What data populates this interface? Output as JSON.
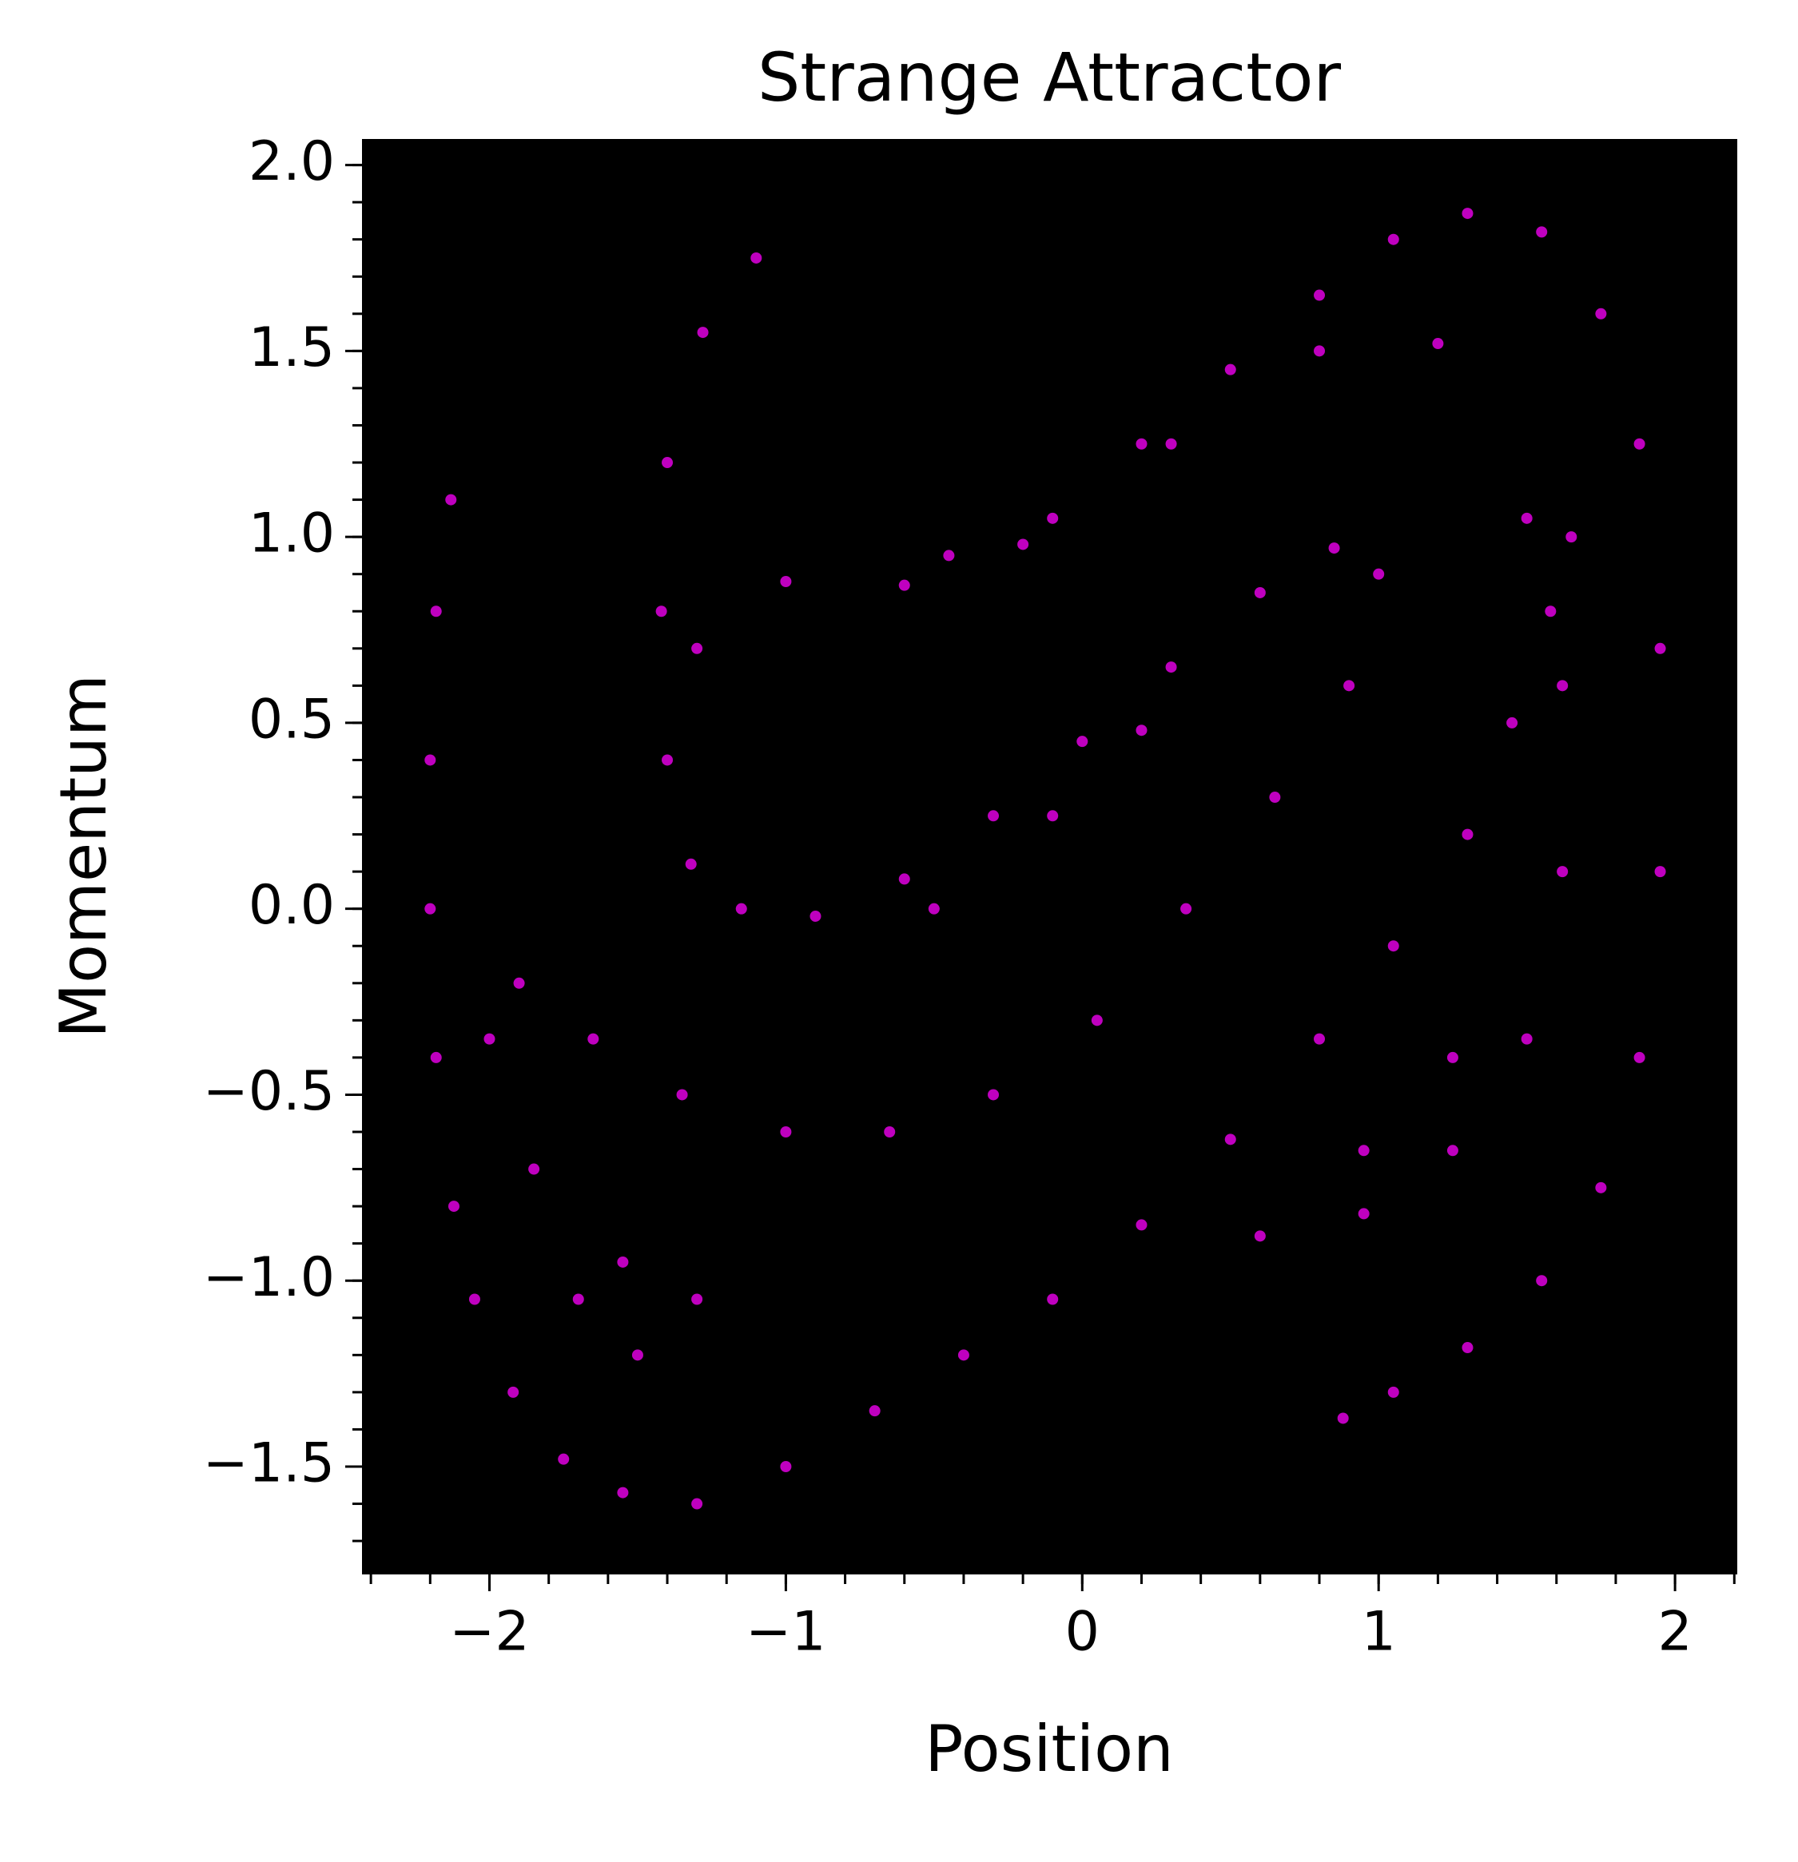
{
  "chart_data": {
    "type": "scatter",
    "title": "Strange Attractor",
    "xlabel": "Position",
    "ylabel": "Momentum",
    "color": "#bf00bf",
    "facecolor": "#000000",
    "x": [
      -2.13,
      -2.18,
      -2.2,
      -2.2,
      -2.18,
      -2.12,
      -2.05,
      -1.92,
      -1.75,
      -1.55,
      -1.3,
      -1.0,
      -0.7,
      -0.4,
      -0.1,
      0.2,
      0.5,
      0.8,
      1.05,
      1.3,
      1.45,
      1.58,
      1.65,
      -0.45,
      -0.1,
      0.2,
      0.5,
      0.8,
      1.05,
      1.3,
      1.55,
      1.75,
      1.88,
      1.95,
      1.95,
      1.88,
      1.75,
      1.55,
      1.3,
      1.05,
      0.88,
      -1.1,
      -1.28,
      -1.4,
      -1.42,
      -1.4,
      -1.32,
      -1.15,
      -0.9,
      -0.6,
      -0.3,
      0.0,
      0.3,
      0.6,
      0.85,
      1.0,
      0.9,
      0.65,
      0.35,
      0.05,
      -0.3,
      -0.65,
      -1.0,
      -1.35,
      -1.65,
      -1.9,
      -2.0,
      -1.85,
      -1.55,
      -1.3,
      -1.5,
      -1.7,
      -1.3,
      -1.0,
      -0.6,
      -0.2,
      0.3,
      0.8,
      1.2,
      1.5,
      1.62,
      1.62,
      1.5,
      1.25,
      0.95,
      0.6,
      0.95,
      1.25,
      0.2,
      -0.1,
      -0.5
    ],
    "y": [
      1.1,
      0.8,
      0.4,
      0.0,
      -0.4,
      -0.8,
      -1.05,
      -1.3,
      -1.48,
      -1.57,
      -1.6,
      -1.5,
      -1.35,
      -1.2,
      -1.05,
      -0.85,
      -0.62,
      -0.35,
      -0.1,
      0.2,
      0.5,
      0.8,
      1.0,
      0.95,
      1.05,
      1.25,
      1.45,
      1.65,
      1.8,
      1.87,
      1.82,
      1.6,
      1.25,
      0.7,
      0.1,
      -0.4,
      -0.75,
      -1.0,
      -1.18,
      -1.3,
      -1.37,
      1.75,
      1.55,
      1.2,
      0.8,
      0.4,
      0.12,
      0.0,
      -0.02,
      0.08,
      0.25,
      0.45,
      0.65,
      0.85,
      0.97,
      0.9,
      0.6,
      0.3,
      0.0,
      -0.3,
      -0.5,
      -0.6,
      -0.6,
      -0.5,
      -0.35,
      -0.2,
      -0.35,
      -0.7,
      -0.95,
      -1.05,
      -1.2,
      -1.05,
      0.7,
      0.88,
      0.87,
      0.98,
      1.25,
      1.5,
      1.52,
      1.05,
      0.6,
      0.1,
      -0.35,
      -0.65,
      -0.82,
      -0.88,
      -0.65,
      -0.4,
      0.48,
      0.25,
      0.0
    ],
    "xlim": [
      -2.43,
      2.21
    ],
    "ylim": [
      -1.79,
      2.07
    ],
    "xticks": [
      {
        "value": -2,
        "label": "−2"
      },
      {
        "value": -1,
        "label": "−1"
      },
      0,
      1,
      2
    ],
    "yticks": [
      {
        "value": -1.5,
        "label": "−1.5"
      },
      {
        "value": -1.0,
        "label": "−1.0"
      },
      {
        "value": -0.5,
        "label": "−0.5"
      },
      {
        "value": 0,
        "label": "0.0"
      },
      {
        "value": 0.5,
        "label": "0.5"
      },
      {
        "value": 1.0,
        "label": "1.0"
      },
      {
        "value": 1.5,
        "label": "1.5"
      },
      {
        "value": 2.0,
        "label": "2.0"
      }
    ],
    "xminorticks": [
      -2.4,
      -2.2,
      -2.0,
      -1.8,
      -1.6,
      -1.4,
      -1.2,
      -1.0,
      -0.8,
      -0.6,
      -0.4,
      -0.2,
      0.0,
      0.2,
      0.4,
      0.6,
      0.8,
      1.0,
      1.2,
      1.4,
      1.6,
      1.8,
      2.0,
      2.2
    ],
    "yminorticks": [
      -1.7,
      -1.6,
      -1.5,
      -1.4,
      -1.3,
      -1.2,
      -1.1,
      -1.0,
      -0.9,
      -0.8,
      -0.7,
      -0.6,
      -0.5,
      -0.4,
      -0.3,
      -0.2,
      -0.1,
      0.0,
      0.1,
      0.2,
      0.3,
      0.4,
      0.5,
      0.6,
      0.7,
      0.8,
      0.9,
      1.0,
      1.1,
      1.2,
      1.3,
      1.4,
      1.5,
      1.6,
      1.7,
      1.8,
      1.9,
      2.0
    ]
  }
}
